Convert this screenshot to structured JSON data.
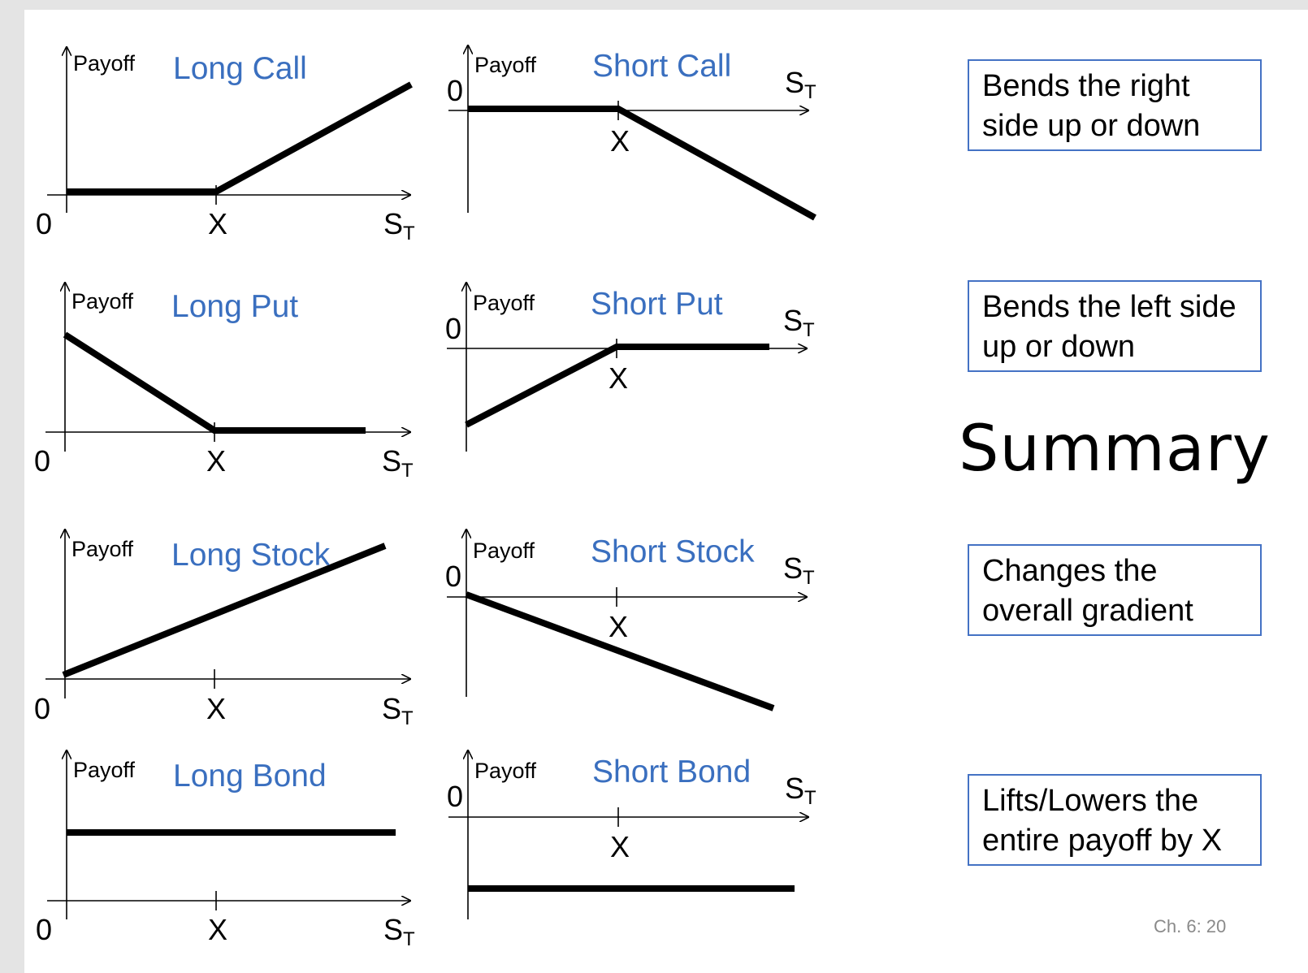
{
  "slide": {
    "title": "Summary",
    "slide_number": "Ch. 6: 20"
  },
  "colors": {
    "title_blue": "#3a6fbf",
    "box_border": "#4472c4",
    "line": "#000000"
  },
  "axis_labels": {
    "y_label": "Payoff",
    "x_label_main": "S",
    "x_label_sub": "T",
    "origin": "0",
    "strike": "X"
  },
  "panels": [
    {
      "id": "long-call",
      "title": "Long Call",
      "payoff_shape": "zero until X, then rising"
    },
    {
      "id": "short-call",
      "title": "Short Call",
      "payoff_shape": "zero until X, then falling"
    },
    {
      "id": "long-put",
      "title": "Long Put",
      "payoff_shape": "falling until X, then zero"
    },
    {
      "id": "short-put",
      "title": "Short Put",
      "payoff_shape": "rising until X, then zero"
    },
    {
      "id": "long-stock",
      "title": "Long Stock",
      "payoff_shape": "rising straight line"
    },
    {
      "id": "short-stock",
      "title": "Short Stock",
      "payoff_shape": "falling straight line"
    },
    {
      "id": "long-bond",
      "title": "Long Bond",
      "payoff_shape": "constant positive"
    },
    {
      "id": "short-bond",
      "title": "Short Bond",
      "payoff_shape": "constant negative"
    }
  ],
  "notes": [
    {
      "lines": [
        "Bends the right",
        "side up or down"
      ]
    },
    {
      "lines": [
        "Bends the left side",
        "up or down"
      ]
    },
    {
      "lines": [
        "Changes the",
        "overall gradient"
      ]
    },
    {
      "lines": [
        "Lifts/Lowers the",
        "entire payoff by X"
      ]
    }
  ]
}
